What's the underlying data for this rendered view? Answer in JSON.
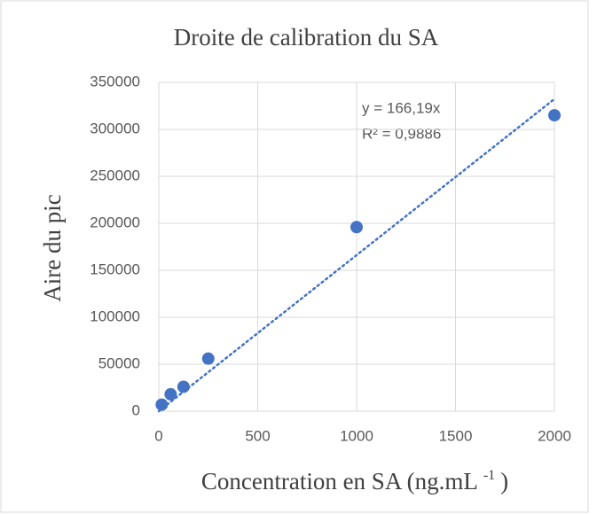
{
  "chart_data": {
    "type": "scatter",
    "title": "Droite de calibration du SA",
    "x_label": "Concentration en SA (ng.mL",
    "x_label_sup": "-1",
    "x_label_end": ")",
    "y_label": "Aire du pic",
    "series": [
      {
        "name": "SA",
        "color": "#4472c4",
        "x": [
          15,
          60,
          125,
          250,
          1000,
          2000
        ],
        "values": [
          7000,
          18000,
          26000,
          56000,
          196000,
          315000
        ]
      }
    ],
    "trendline": {
      "slope": 166.19,
      "equation": "y = 166,19x",
      "r_squared": "R² = 0,9886",
      "color": "#4472c4"
    },
    "xlim": [
      0,
      2000
    ],
    "xticks": [
      0,
      500,
      1000,
      1500,
      2000
    ],
    "ylim": [
      0,
      350000
    ],
    "yticks": [
      0,
      50000,
      100000,
      150000,
      200000,
      250000,
      300000,
      350000
    ],
    "grid": true
  }
}
